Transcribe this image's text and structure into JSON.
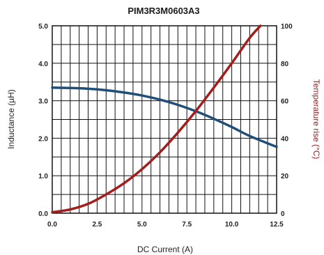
{
  "chart_data": {
    "type": "line",
    "title": "PIM3R3M0603A3",
    "xlabel": "DC Current (A)",
    "ylabel": "Inductance (µH)",
    "y2label": "Temperature rise (°C)",
    "xlim": [
      0,
      12.5
    ],
    "ylim": [
      0,
      5.0
    ],
    "y2lim": [
      0,
      100
    ],
    "x_ticks": [
      "0.0",
      "2.5",
      "5.0",
      "7.5",
      "10.0",
      "12.5"
    ],
    "y_ticks": [
      "0.0",
      "1.0",
      "2.0",
      "3.0",
      "4.0",
      "5.0"
    ],
    "y2_ticks": [
      "0",
      "20",
      "40",
      "60",
      "80",
      "100"
    ],
    "grid": true,
    "series": [
      {
        "axis": "left",
        "color": "#1f4e79",
        "x": [
          0,
          1,
          2,
          3,
          4,
          5,
          6,
          7,
          8,
          9,
          10,
          11,
          12.5
        ],
        "y": [
          3.35,
          3.34,
          3.32,
          3.28,
          3.22,
          3.14,
          3.03,
          2.89,
          2.72,
          2.52,
          2.3,
          2.06,
          1.77
        ]
      },
      {
        "axis": "right",
        "color": "#a31d1d",
        "x": [
          0,
          1,
          2,
          3,
          4,
          5,
          6,
          7,
          8,
          9,
          10,
          11,
          11.6
        ],
        "y": [
          0.5,
          2,
          5,
          10,
          16,
          23.5,
          32.5,
          43,
          54.5,
          67,
          80,
          93.5,
          100
        ]
      }
    ]
  }
}
